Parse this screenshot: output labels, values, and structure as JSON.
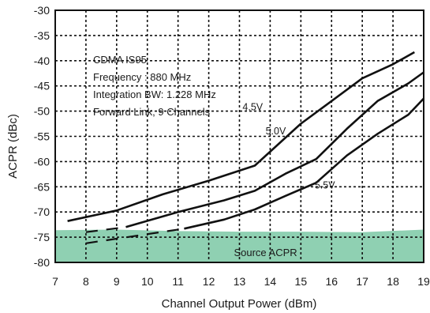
{
  "chart_data": {
    "type": "line",
    "title": "",
    "xlabel": "Channel Output Power (dBm)",
    "ylabel": "ACPR (dBc)",
    "xlim": [
      7,
      19
    ],
    "ylim": [
      -80,
      -30
    ],
    "x_ticks": [
      7,
      8,
      9,
      10,
      11,
      12,
      13,
      14,
      15,
      16,
      17,
      18,
      19
    ],
    "y_ticks": [
      -80,
      -75,
      -70,
      -65,
      -60,
      -55,
      -50,
      -45,
      -40,
      -35,
      -30
    ],
    "grid": true,
    "legend": "none",
    "annotation_lines": [
      "CDMA IS95",
      "Frequency : 880 MHz",
      "Integration BW: 1.228 MHz",
      "Forward Link, 9 Channels"
    ],
    "series": [
      {
        "name": "4.5V",
        "label_at": [
          13.1,
          -49.2
        ],
        "solid": [
          [
            7.4,
            -71.8
          ],
          [
            9.0,
            -69.7
          ],
          [
            10.5,
            -66.5
          ],
          [
            12.0,
            -63.8
          ],
          [
            13.5,
            -60.8
          ],
          [
            15.0,
            -52.5
          ],
          [
            16.0,
            -48.0
          ],
          [
            17.0,
            -43.5
          ],
          [
            18.0,
            -40.7
          ],
          [
            18.7,
            -38.3
          ]
        ],
        "dashed": []
      },
      {
        "name": "5.0V",
        "label_at": [
          13.85,
          -54.0
        ],
        "solid": [
          [
            9.3,
            -73.0
          ],
          [
            11.0,
            -70.0
          ],
          [
            12.5,
            -67.7
          ],
          [
            13.5,
            -65.8
          ],
          [
            14.5,
            -62.4
          ],
          [
            15.5,
            -59.5
          ],
          [
            16.5,
            -53.5
          ],
          [
            17.5,
            -48.0
          ],
          [
            18.5,
            -44.5
          ],
          [
            19.0,
            -42.3
          ]
        ],
        "dashed": [
          [
            8.0,
            -74.0
          ],
          [
            9.3,
            -73.0
          ]
        ]
      },
      {
        "name": "5.5V",
        "label_at": [
          15.45,
          -64.7
        ],
        "solid": [
          [
            11.2,
            -73.3
          ],
          [
            12.5,
            -71.5
          ],
          [
            13.5,
            -69.5
          ],
          [
            14.5,
            -66.8
          ],
          [
            15.5,
            -64.2
          ],
          [
            16.5,
            -58.8
          ],
          [
            17.5,
            -54.5
          ],
          [
            18.5,
            -50.7
          ],
          [
            19.0,
            -47.5
          ]
        ],
        "dashed": [
          [
            8.0,
            -76.2
          ],
          [
            11.2,
            -73.3
          ]
        ]
      }
    ],
    "source_acpr": {
      "label": "Source ACPR",
      "color": "#8fd0b2",
      "bottom": -80,
      "top": [
        [
          7,
          -73.6
        ],
        [
          9,
          -73.5
        ],
        [
          11,
          -73.8
        ],
        [
          13,
          -73.9
        ],
        [
          15,
          -73.9
        ],
        [
          17,
          -74.0
        ],
        [
          19,
          -73.5
        ]
      ],
      "label_at": [
        13.85,
        -78.0
      ]
    }
  }
}
